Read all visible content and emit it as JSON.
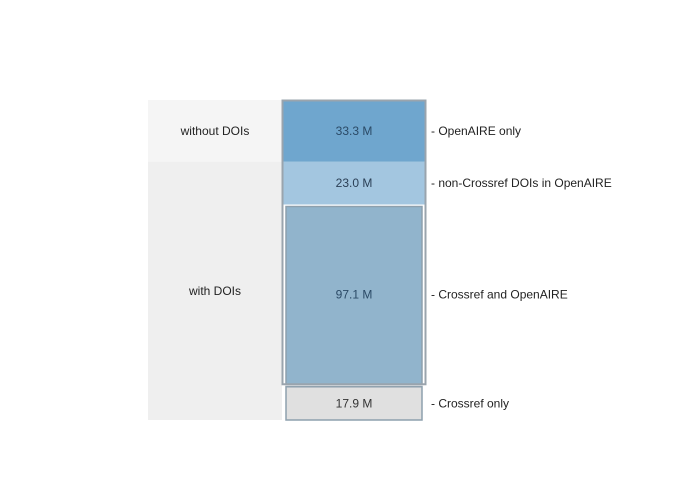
{
  "chart_data": {
    "type": "bar",
    "orientation": "stacked-vertical",
    "unit": "M",
    "groups": [
      {
        "name": "without DOIs",
        "segments": [
          "openaire_only"
        ],
        "color": "#f5f5f5"
      },
      {
        "name": "with DOIs",
        "segments": [
          "non_crossref_dois",
          "crossref_and_openaire",
          "crossref_only"
        ],
        "color": "#efefef"
      }
    ],
    "segments": [
      {
        "key": "openaire_only",
        "value": 33.3,
        "value_label": "33.3 M",
        "category": "- OpenAIRE only",
        "fill": "#6fa6ce",
        "text_color": "#2b4a66"
      },
      {
        "key": "non_crossref_dois",
        "value": 23.0,
        "value_label": "23.0 M",
        "category": "- non-Crossref DOIs in OpenAIRE",
        "fill": "#a3c6e0",
        "text_color": "#2b3f55"
      },
      {
        "key": "crossref_and_openaire",
        "value": 97.1,
        "value_label": "97.1 M",
        "category": "- Crossref and OpenAIRE",
        "fill": "#91b4cc",
        "text_color": "#2b4a66"
      },
      {
        "key": "crossref_only",
        "value": 17.9,
        "value_label": "17.9 M",
        "category": "- Crossref only",
        "fill": "#e0e0e0",
        "text_color": "#333333"
      }
    ],
    "openaire_outline_color": "#9aa4ad",
    "crossref_outline_color": "#8ea0ad"
  }
}
